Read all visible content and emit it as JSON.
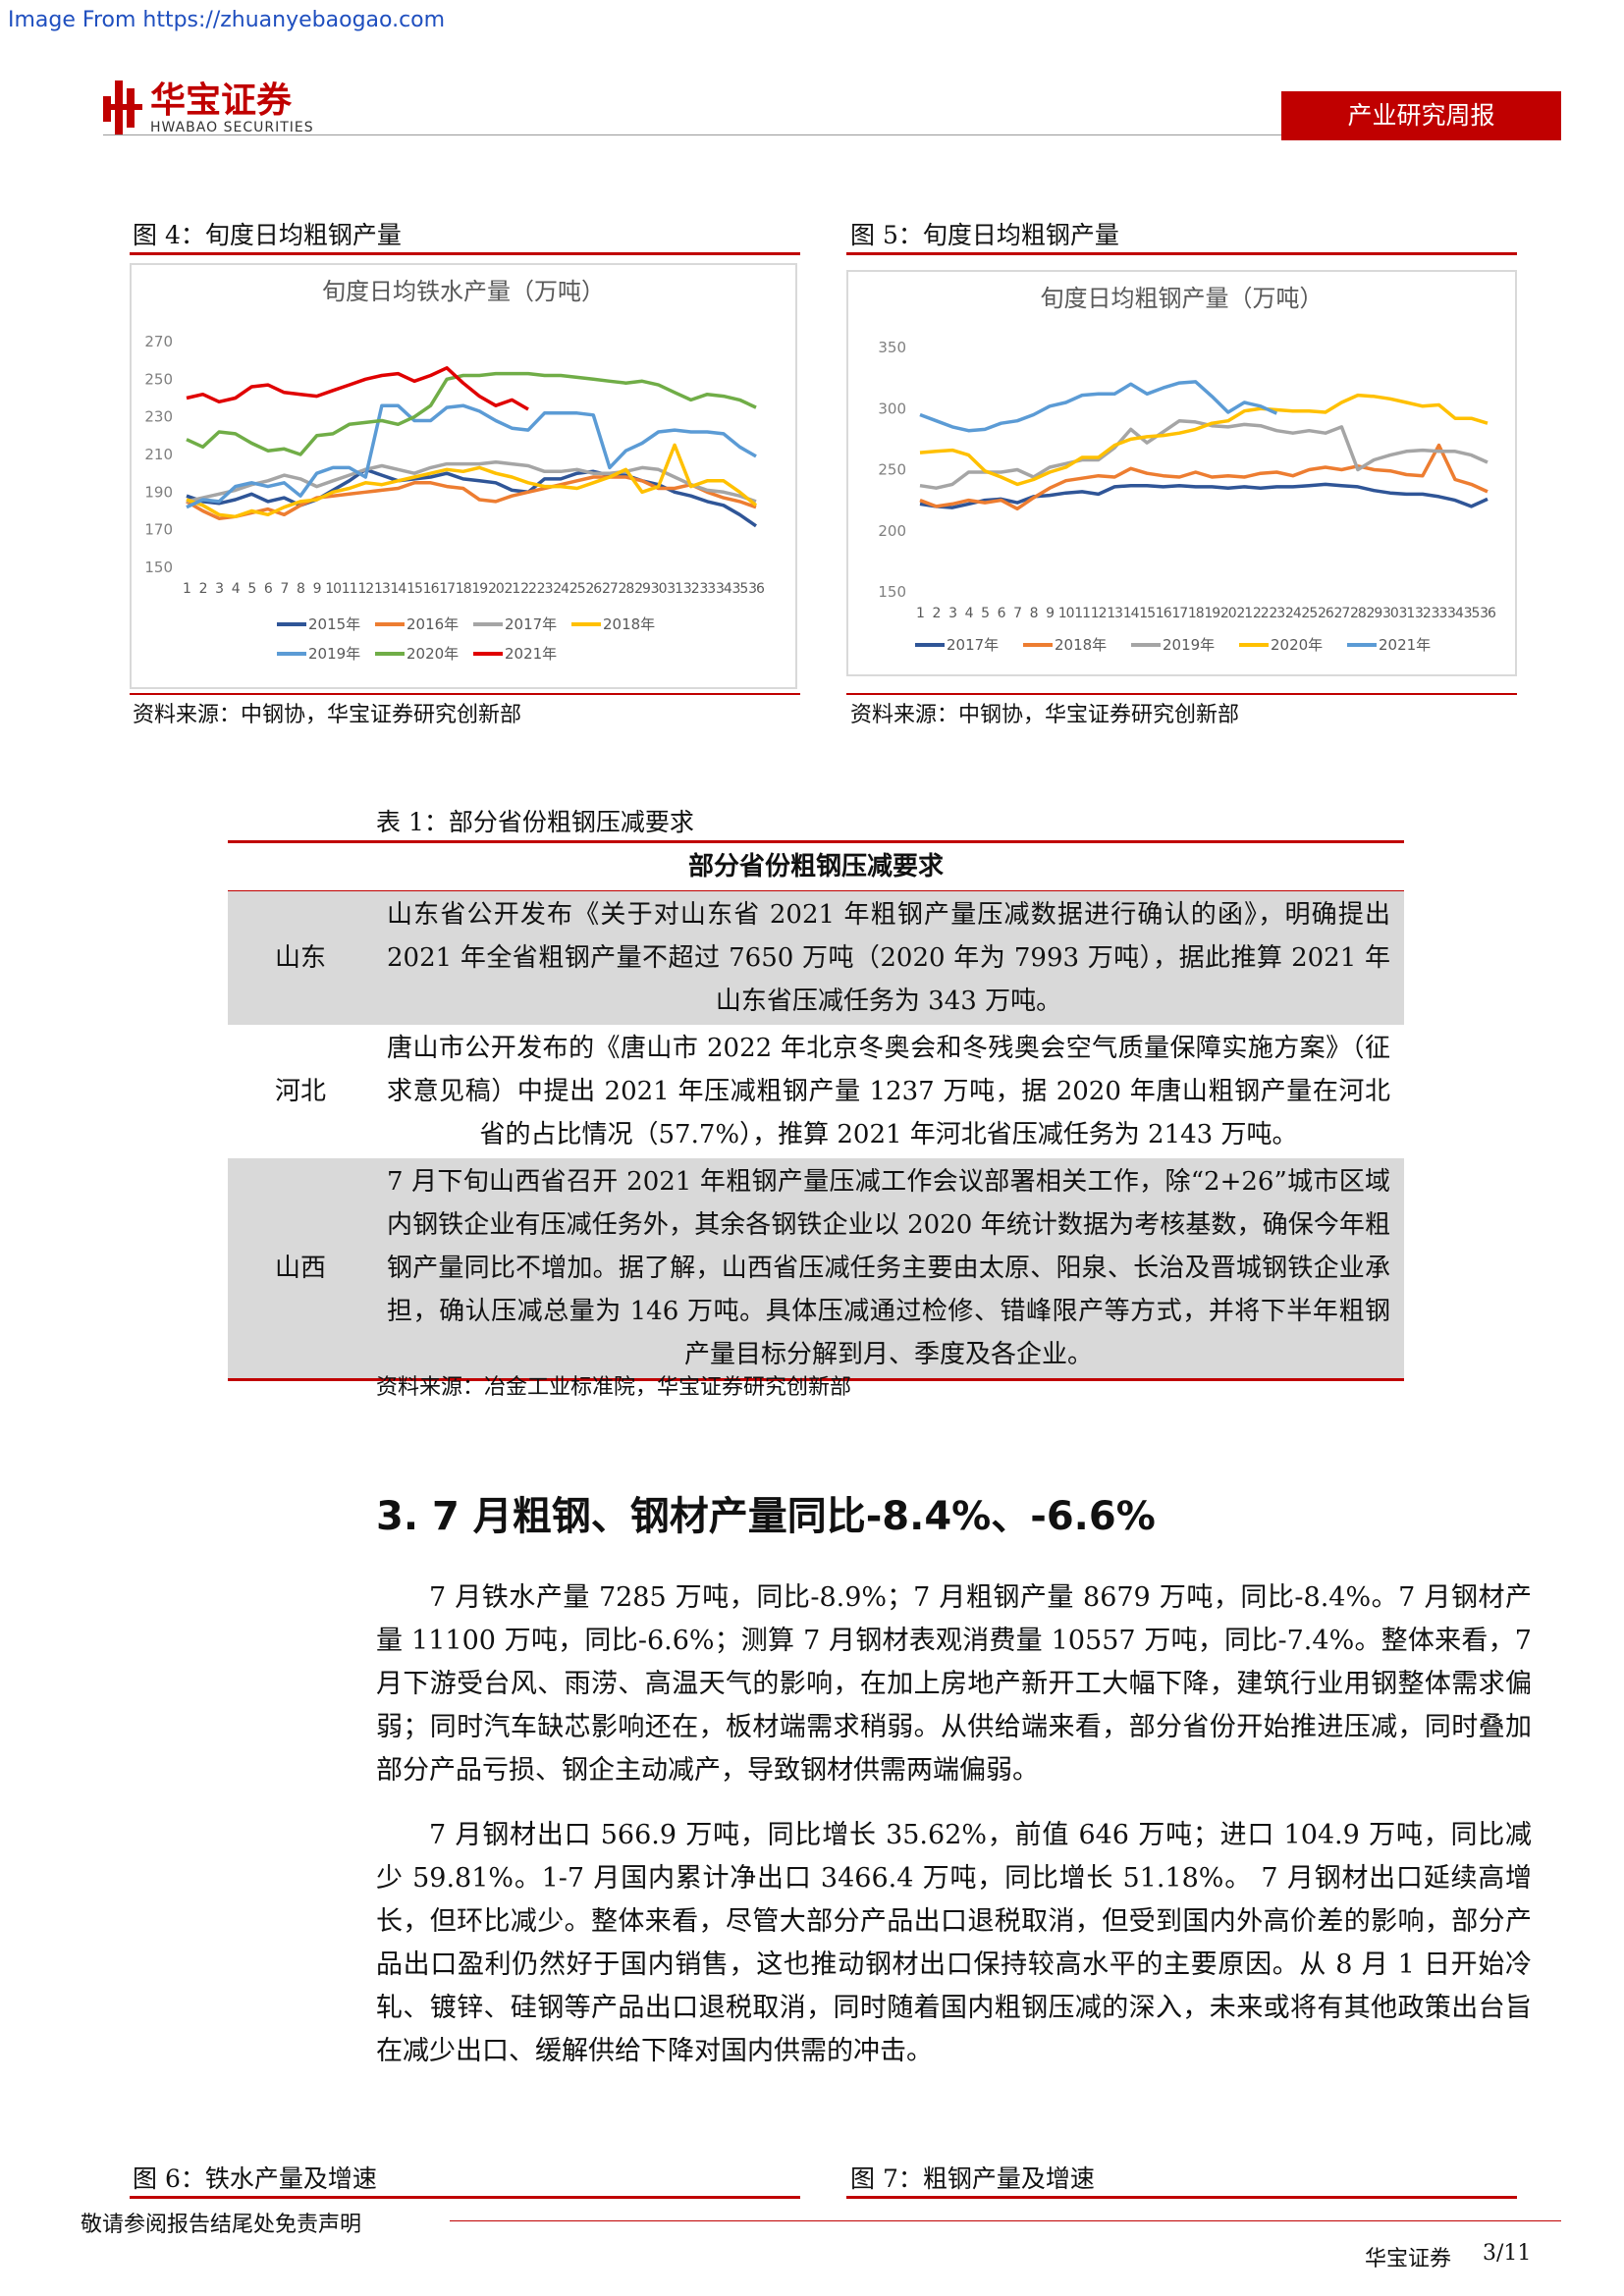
{
  "watermark": "Image From https://zhuanyebaogao.com",
  "header": {
    "logo": "华宝证券",
    "logo_en": "HWABAO SECURITIES",
    "tag": "产业研究周报"
  },
  "figures": [
    {
      "caption": "图 4：旬度日均粗钢产量",
      "source": "资料来源：中钢协，华宝证券研究创新部",
      "chart": {
        "type": "line",
        "title": "旬度日均铁水产量（万吨）",
        "categories": [
          "1",
          "2",
          "3",
          "4",
          "5",
          "6",
          "7",
          "8",
          "9",
          "10",
          "11",
          "12",
          "13",
          "14",
          "15",
          "16",
          "17",
          "18",
          "19",
          "20",
          "21",
          "22",
          "23",
          "24",
          "25",
          "26",
          "27",
          "28",
          "29",
          "30",
          "31",
          "32",
          "33",
          "34",
          "35",
          "36"
        ],
        "ylim": [
          150,
          270
        ],
        "yticks": [
          150,
          170,
          190,
          210,
          230,
          250,
          270
        ],
        "series": [
          {
            "name": "2015年",
            "color": "#2f5597",
            "values": [
              188,
              185,
              184,
              186,
              189,
              185,
              187,
              183,
              186,
              191,
              196,
              202,
              199,
              196,
              197,
              198,
              200,
              197,
              196,
              195,
              191,
              190,
              197,
              197,
              200,
              201,
              199,
              199,
              196,
              194,
              190,
              188,
              185,
              183,
              178,
              172
            ]
          },
          {
            "name": "2016年",
            "color": "#ed7d31",
            "values": [
              185,
              180,
              176,
              177,
              179,
              181,
              178,
              183,
              187,
              188,
              189,
              190,
              191,
              192,
              195,
              195,
              193,
              192,
              186,
              185,
              188,
              190,
              192,
              194,
              196,
              198,
              198,
              198,
              196,
              192,
              192,
              194,
              190,
              187,
              185,
              182
            ]
          },
          {
            "name": "2017年",
            "color": "#a5a5a5",
            "values": [
              185,
              187,
              189,
              191,
              194,
              196,
              199,
              197,
              193,
              196,
              199,
              202,
              204,
              202,
              200,
              203,
              205,
              205,
              205,
              206,
              205,
              204,
              201,
              201,
              202,
              200,
              200,
              201,
              203,
              202,
              198,
              194,
              191,
              190,
              188,
              185
            ]
          },
          {
            "name": "2018年",
            "color": "#ffc000",
            "values": [
              186,
              183,
              178,
              177,
              180,
              178,
              182,
              185,
              186,
              190,
              192,
              195,
              194,
              196,
              198,
              200,
              202,
              201,
              203,
              200,
              198,
              195,
              193,
              193,
              192,
              195,
              198,
              202,
              190,
              193,
              215,
              193,
              196,
              196,
              190,
              183
            ]
          },
          {
            "name": "2019年",
            "color": "#5b9bd5",
            "values": [
              182,
              186,
              185,
              193,
              195,
              193,
              195,
              188,
              200,
              203,
              203,
              198,
              236,
              236,
              228,
              228,
              235,
              236,
              233,
              228,
              224,
              223,
              232,
              232,
              232,
              231,
              203,
              212,
              216,
              222,
              223,
              222,
              222,
              221,
              214,
              209
            ]
          },
          {
            "name": "2020年",
            "color": "#70ad47",
            "values": [
              218,
              214,
              222,
              221,
              216,
              212,
              213,
              210,
              220,
              221,
              226,
              227,
              228,
              226,
              230,
              236,
              250,
              252,
              252,
              253,
              253,
              253,
              252,
              252,
              251,
              250,
              249,
              248,
              249,
              247,
              243,
              239,
              242,
              241,
              239,
              235
            ]
          },
          {
            "name": "2021年",
            "color": "#e00000",
            "values": [
              240,
              242,
              238,
              240,
              246,
              247,
              243,
              242,
              241,
              244,
              247,
              250,
              252,
              253,
              249,
              252,
              256,
              248,
              241,
              236,
              239,
              234,
              null,
              null,
              null,
              null,
              null,
              null,
              null,
              null,
              null,
              null,
              null,
              null,
              null,
              null
            ]
          }
        ]
      }
    },
    {
      "caption": "图 5：旬度日均粗钢产量",
      "source": "资料来源：中钢协，华宝证券研究创新部",
      "chart": {
        "type": "line",
        "title": "旬度日均粗钢产量（万吨）",
        "categories": [
          "1",
          "2",
          "3",
          "4",
          "5",
          "6",
          "7",
          "8",
          "9",
          "10",
          "11",
          "12",
          "13",
          "14",
          "15",
          "16",
          "17",
          "18",
          "19",
          "20",
          "21",
          "22",
          "23",
          "24",
          "25",
          "26",
          "27",
          "28",
          "29",
          "30",
          "31",
          "32",
          "33",
          "34",
          "35",
          "36"
        ],
        "ylim": [
          150,
          350
        ],
        "yticks": [
          150,
          200,
          250,
          300,
          350
        ],
        "series": [
          {
            "name": "2017年",
            "color": "#2f5597",
            "values": [
              222,
              220,
              219,
              222,
              225,
              226,
              223,
              228,
              229,
              231,
              232,
              230,
              236,
              237,
              237,
              236,
              237,
              236,
              236,
              235,
              236,
              235,
              236,
              236,
              237,
              238,
              237,
              236,
              233,
              231,
              230,
              230,
              228,
              225,
              220,
              226
            ]
          },
          {
            "name": "2018年",
            "color": "#ed7d31",
            "values": [
              225,
              220,
              222,
              225,
              223,
              225,
              218,
              227,
              235,
              241,
              243,
              245,
              244,
              251,
              247,
              245,
              244,
              248,
              244,
              245,
              244,
              247,
              248,
              245,
              250,
              252,
              250,
              253,
              250,
              249,
              246,
              245,
              270,
              242,
              238,
              232
            ]
          },
          {
            "name": "2019年",
            "color": "#a5a5a5",
            "values": [
              237,
              235,
              238,
              248,
              248,
              248,
              250,
              244,
              252,
              255,
              258,
              258,
              268,
              283,
              272,
              281,
              290,
              289,
              286,
              285,
              287,
              286,
              282,
              280,
              282,
              280,
              285,
              250,
              258,
              262,
              265,
              266,
              265,
              265,
              262,
              256
            ]
          },
          {
            "name": "2020年",
            "color": "#ffc000",
            "values": [
              264,
              265,
              266,
              262,
              249,
              244,
              238,
              242,
              248,
              252,
              260,
              260,
              270,
              275,
              277,
              278,
              280,
              283,
              288,
              290,
              298,
              300,
              299,
              298,
              298,
              297,
              305,
              311,
              310,
              308,
              305,
              302,
              303,
              292,
              292,
              288
            ]
          },
          {
            "name": "2021年",
            "color": "#5b9bd5",
            "values": [
              295,
              290,
              285,
              282,
              283,
              288,
              290,
              295,
              302,
              305,
              311,
              312,
              312,
              320,
              312,
              317,
              321,
              322,
              310,
              297,
              305,
              302,
              296,
              null,
              null,
              null,
              null,
              null,
              null,
              null,
              null,
              null,
              null,
              null,
              null,
              null
            ]
          }
        ]
      }
    }
  ],
  "table": {
    "title": "表 1：部分省份粗钢压减要求",
    "header": "部分省份粗钢压减要求",
    "rows": [
      [
        "山东",
        "山东省公开发布《关于对山东省 2021 年粗钢产量压减数据进行确认的函》，明确提出 2021 年全省粗钢产量不超过 7650 万吨（2020 年为 7993 万吨），据此推算 2021 年山东省压减任务为 343 万吨。"
      ],
      [
        "河北",
        "唐山市公开发布的《唐山市 2022 年北京冬奥会和冬残奥会空气质量保障实施方案》（征求意见稿）中提出 2021 年压减粗钢产量 1237 万吨，据 2020 年唐山粗钢产量在河北省的占比情况（57.7%），推算 2021 年河北省压减任务为 2143 万吨。"
      ],
      [
        "山西",
        "7 月下旬山西省召开 2021 年粗钢产量压减工作会议部署相关工作，除“2+26”城市区域内钢铁企业有压减任务外，其余各钢铁企业以 2020 年统计数据为考核基数，确保今年粗钢产量同比不增加。据了解，山西省压减任务主要由太原、阳泉、长治及晋城钢铁企业承担，确认压减总量为 146 万吨。具体压减通过检修、错峰限产等方式，并将下半年粗钢产量目标分解到月、季度及各企业。"
      ]
    ],
    "source": "资料来源：冶金工业标准院，华宝证券研究创新部"
  },
  "section": {
    "heading": "3. 7 月粗钢、钢材产量同比-8.4%、-6.6%",
    "paragraphs": [
      "7 月铁水产量 7285 万吨，同比-8.9%；7 月粗钢产量 8679 万吨，同比-8.4%。7 月钢材产量 11100 万吨，同比-6.6%；测算 7 月钢材表观消费量 10557 万吨，同比-7.4%。整体来看，7 月下游受台风、雨涝、高温天气的影响，在加上房地产新开工大幅下降，建筑行业用钢整体需求偏弱；同时汽车缺芯影响还在，板材端需求稍弱。从供给端来看，部分省份开始推进压减，同时叠加部分产品亏损、钢企主动减产，导致钢材供需两端偏弱。",
      "7 月钢材出口 566.9 万吨，同比增长 35.62%，前值 646 万吨；进口 104.9 万吨，同比减少 59.81%。1-7 月国内累计净出口 3466.4 万吨，同比增长 51.18%。 7 月钢材出口延续高增长，但环比减少。整体来看，尽管大部分产品出口退税取消，但受到国内外高价差的影响，部分产品出口盈利仍然好于国内销售，这也推动钢材出口保持较高水平的主要原因。从 8 月 1 日开始冷轧、镀锌、硅钢等产品出口退税取消，同时随着国内粗钢压减的深入，未来或将有其他政策出台旨在减少出口、缓解供给下降对国内供需的冲击。"
    ]
  },
  "next_captions": [
    "图 6：铁水产量及增速",
    "图 7：粗钢产量及增速"
  ],
  "footer": {
    "disclaimer": "敬请参阅报告结尾处免责声明",
    "company": "华宝证券",
    "page": "3/11"
  }
}
